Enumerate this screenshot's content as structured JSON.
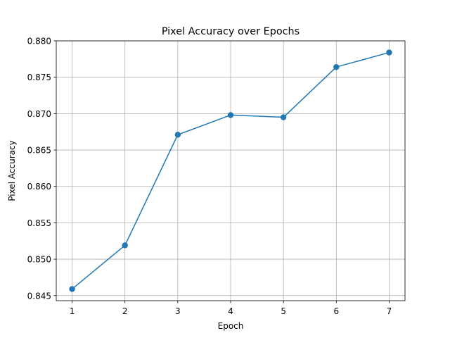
{
  "chart_data": {
    "type": "line",
    "title": "Pixel Accuracy over Epochs",
    "xlabel": "Epoch",
    "ylabel": "Pixel Accuracy",
    "x": [
      1,
      2,
      3,
      4,
      5,
      6,
      7
    ],
    "series": [
      {
        "values": [
          0.8459,
          0.8519,
          0.8671,
          0.8698,
          0.8695,
          0.8764,
          0.8784
        ],
        "color": "#1f77b4",
        "marker": "circle"
      }
    ],
    "xticks": [
      "1",
      "2",
      "3",
      "4",
      "5",
      "6",
      "7"
    ],
    "yticks": [
      "0.845",
      "0.850",
      "0.855",
      "0.860",
      "0.865",
      "0.870",
      "0.875",
      "0.880"
    ],
    "xlim": [
      0.7,
      7.3
    ],
    "ylim": [
      0.8443,
      0.88
    ],
    "grid": true,
    "legend": "none"
  }
}
